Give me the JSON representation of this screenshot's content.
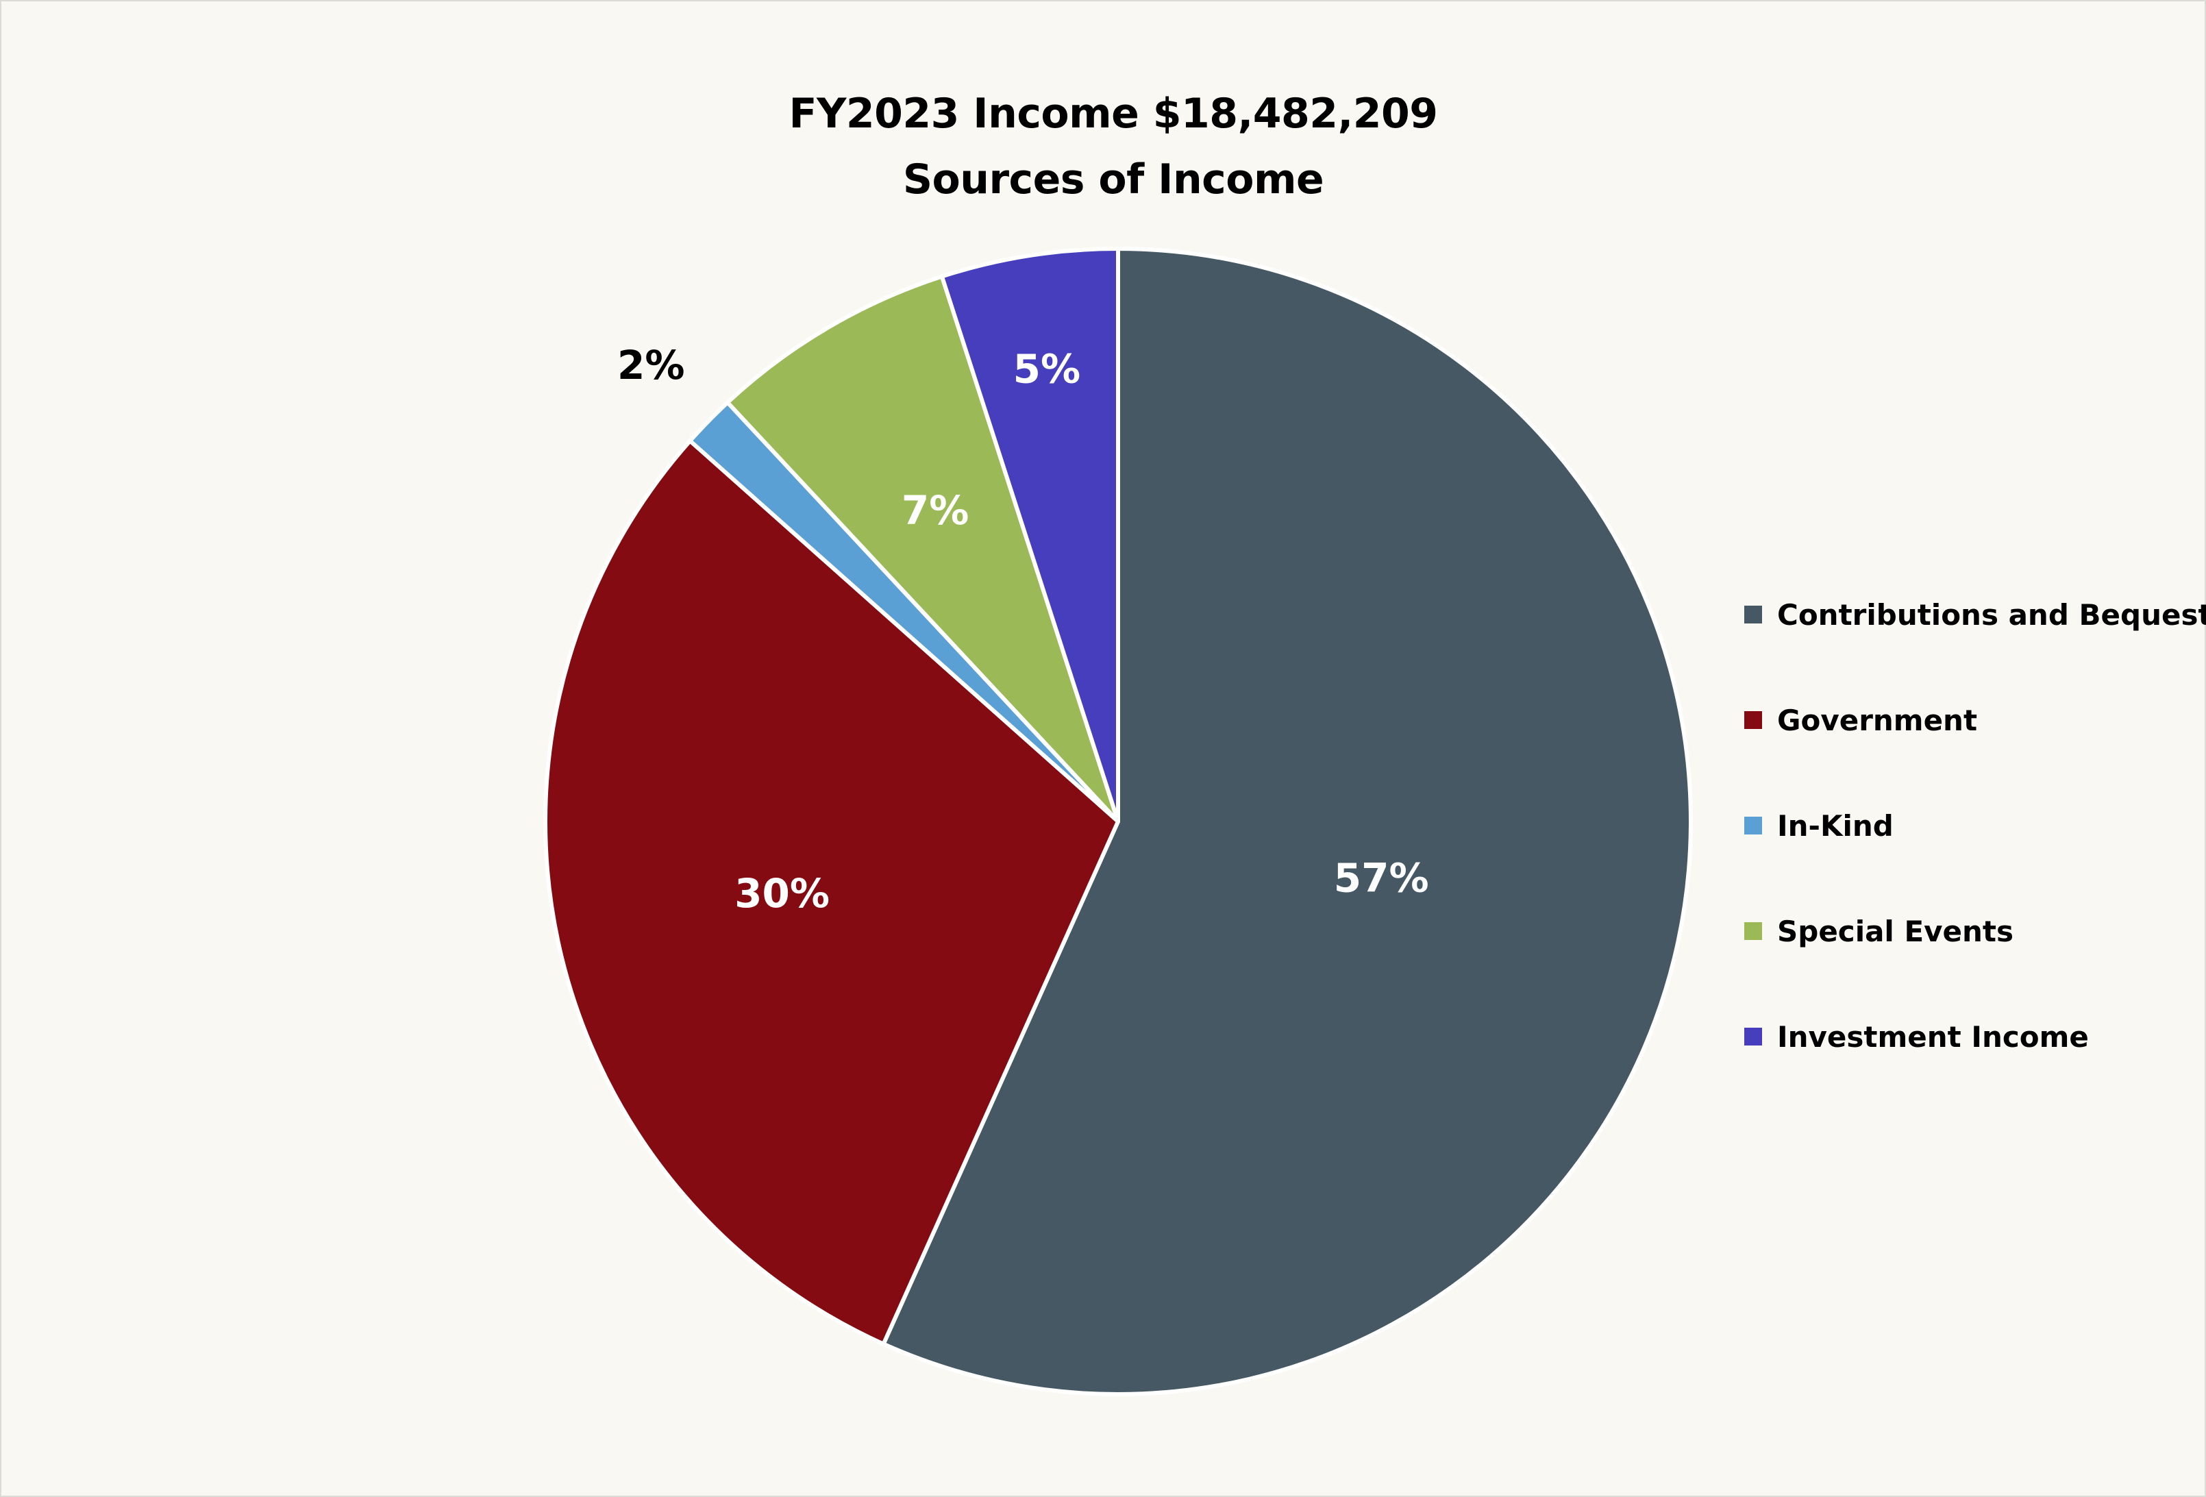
{
  "chart_data": {
    "type": "pie",
    "title": "FY2023 Income $18,482,209",
    "subtitle": "Sources of Income",
    "slices": [
      {
        "name": "Contributions and Bequests",
        "value": 57,
        "label": "57%",
        "color": "#455863",
        "label_color": "#ffffff"
      },
      {
        "name": "Government",
        "value": 30,
        "label": "30%",
        "color": "#850b13",
        "label_color": "#ffffff"
      },
      {
        "name": "In-Kind",
        "value": 1.5,
        "label": "2%",
        "color": "#5aa0d4",
        "label_color": "#000000"
      },
      {
        "name": "Special Events",
        "value": 7,
        "label": "7%",
        "color": "#9bb957",
        "label_color": "#ffffff"
      },
      {
        "name": "Investment Income",
        "value": 5,
        "label": "5%",
        "color": "#473ebd",
        "label_color": "#ffffff"
      }
    ],
    "start_angle": "12 o'clock",
    "direction": "clockwise",
    "legend_position": "right"
  }
}
